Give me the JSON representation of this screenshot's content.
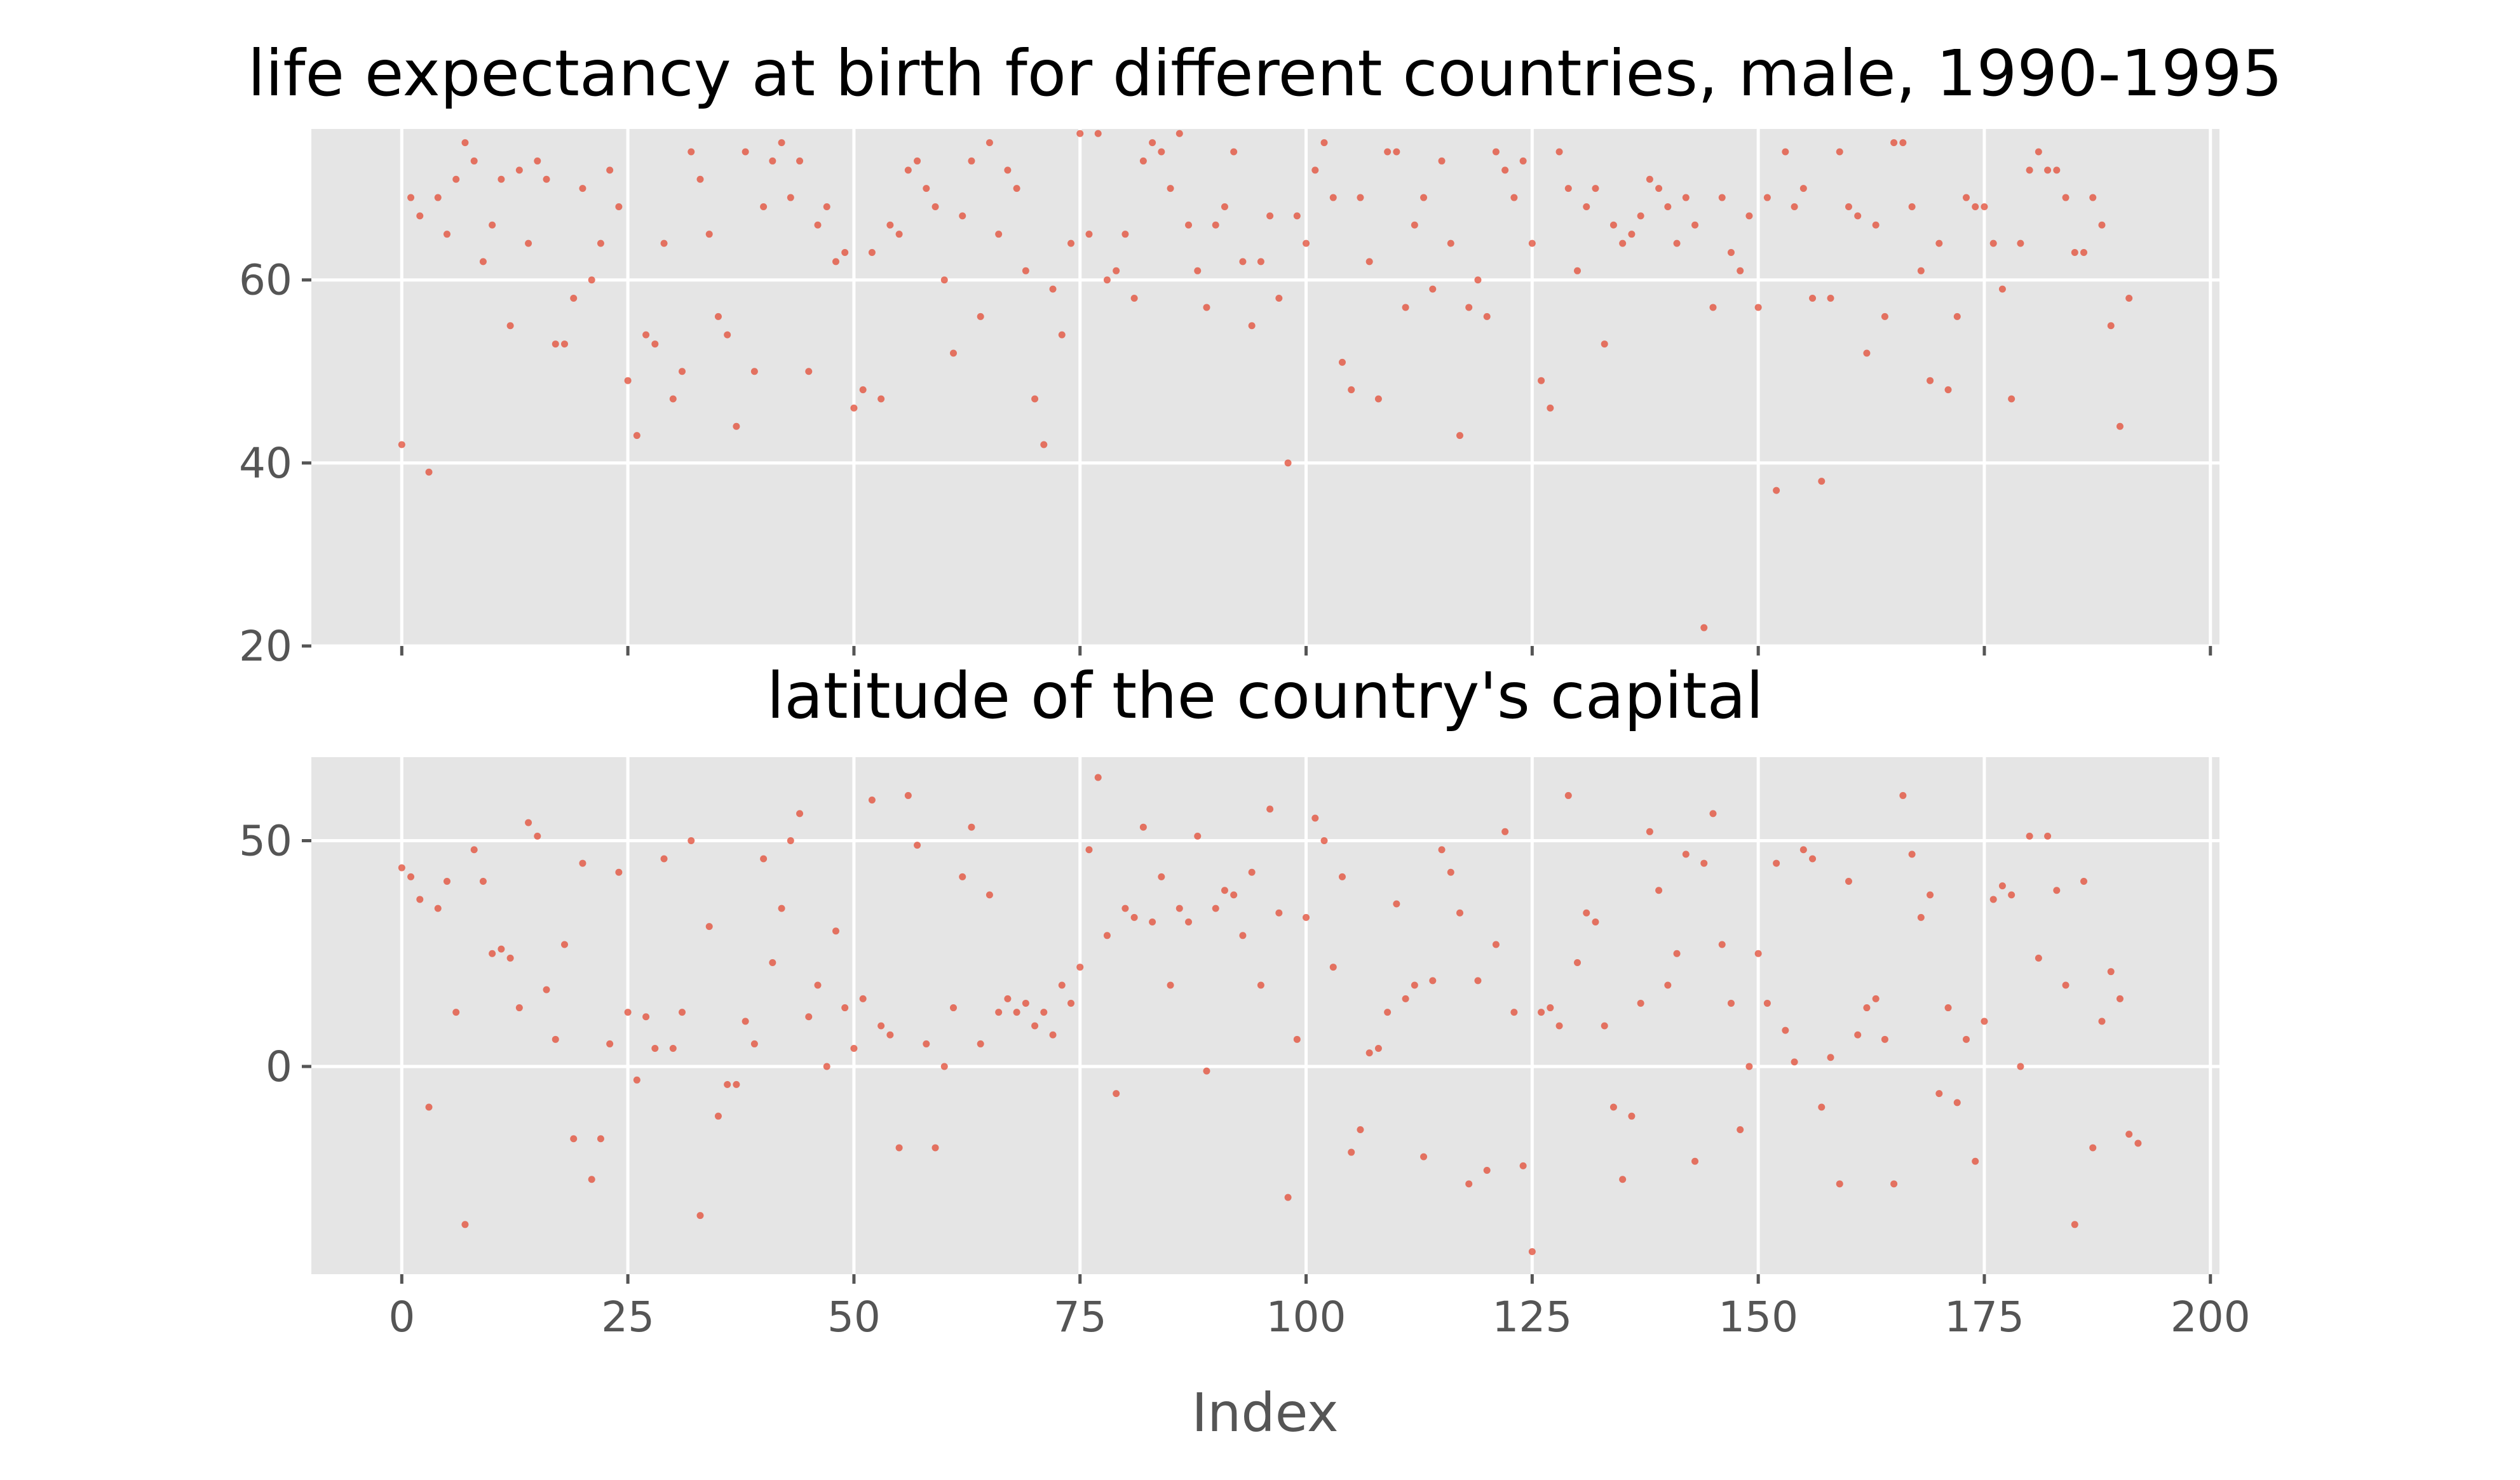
{
  "chart_data": [
    {
      "type": "scatter",
      "title": "life expectancy at birth for different countries, male, 1990-1995",
      "xlabel": "",
      "ylabel": "",
      "xlim": [
        -10,
        201
      ],
      "ylim": [
        20,
        76.5
      ],
      "xticks": [
        0,
        25,
        50,
        75,
        100,
        125,
        150,
        175,
        200
      ],
      "xtick_labels_visible": false,
      "yticks": [
        20,
        40,
        60
      ],
      "ytick_labels": [
        "20",
        "40",
        "60"
      ],
      "grid": true,
      "color": "#e24a33",
      "x_start": 0,
      "values": [
        42,
        69,
        67,
        39,
        69,
        65,
        71,
        75,
        73,
        62,
        66,
        71,
        55,
        72,
        64,
        73,
        71,
        53,
        53,
        58,
        70,
        60,
        64,
        72,
        68,
        49,
        43,
        54,
        53,
        64,
        47,
        50,
        74,
        71,
        65,
        56,
        54,
        44,
        74,
        50,
        68,
        73,
        75,
        69,
        73,
        50,
        66,
        68,
        62,
        63,
        46,
        48,
        63,
        47,
        66,
        65,
        72,
        73,
        70,
        68,
        60,
        52,
        67,
        73,
        56,
        75,
        65,
        72,
        70,
        61,
        47,
        42,
        59,
        54,
        64,
        76,
        65,
        76,
        60,
        61,
        65,
        58,
        73,
        75,
        74,
        70,
        76,
        66,
        61,
        57,
        66,
        68,
        74,
        62,
        55,
        62,
        67,
        58,
        40,
        67,
        64,
        72,
        75,
        69,
        51,
        48,
        69,
        62,
        47,
        74,
        74,
        57,
        66,
        69,
        59,
        73,
        64,
        43,
        57,
        60,
        56,
        74,
        72,
        69,
        73,
        64,
        49,
        46,
        74,
        70,
        61,
        68,
        70,
        53,
        66,
        64,
        65,
        67,
        71,
        70,
        68,
        64,
        69,
        66,
        22,
        57,
        69,
        63,
        61,
        67,
        57,
        69,
        37,
        74,
        68,
        70,
        58,
        38,
        58,
        74,
        68,
        67,
        52,
        66,
        56,
        75,
        75,
        68,
        61,
        49,
        64,
        48,
        56,
        69,
        68,
        68,
        64,
        59,
        47,
        64,
        72,
        74,
        72,
        72,
        69,
        63,
        63,
        69,
        66,
        55,
        44,
        58
      ]
    },
    {
      "type": "scatter",
      "title": "latitude of the country's capital",
      "xlabel": "Index",
      "ylabel": "",
      "xlim": [
        -10,
        201
      ],
      "ylim": [
        -46,
        68.5
      ],
      "xticks": [
        0,
        25,
        50,
        75,
        100,
        125,
        150,
        175,
        200
      ],
      "xtick_labels": [
        "0",
        "25",
        "50",
        "75",
        "100",
        "125",
        "150",
        "175",
        "200"
      ],
      "yticks": [
        0,
        50
      ],
      "ytick_labels": [
        "0",
        "50"
      ],
      "grid": true,
      "color": "#e24a33",
      "x_start": 0,
      "values": [
        44,
        42,
        37,
        -9,
        35,
        41,
        12,
        -35,
        48,
        41,
        25,
        26,
        24,
        13,
        54,
        51,
        17,
        6,
        27,
        -16,
        45,
        -25,
        -16,
        5,
        43,
        12,
        -3,
        11,
        4,
        46,
        4,
        12,
        50,
        -33,
        31,
        -11,
        -4,
        -4,
        10,
        5,
        46,
        23,
        35,
        50,
        56,
        11,
        18,
        0,
        30,
        13,
        4,
        15,
        59,
        9,
        7,
        -18,
        60,
        49,
        5,
        -18,
        0,
        13,
        42,
        53,
        5,
        38,
        12,
        15,
        12,
        14,
        9,
        12,
        7,
        18,
        14,
        22,
        48,
        64,
        29,
        -6,
        35,
        33,
        53,
        32,
        42,
        18,
        35,
        32,
        51,
        -1,
        35,
        39,
        38,
        29,
        43,
        18,
        57,
        34,
        -29,
        6,
        33,
        55,
        50,
        22,
        42,
        -19,
        -14,
        3,
        4,
        12,
        36,
        15,
        18,
        -20,
        19,
        48,
        43,
        34,
        -26,
        19,
        -23,
        27,
        52,
        12,
        -22,
        -41,
        12,
        13,
        9,
        60,
        23,
        34,
        32,
        9,
        -9,
        -25,
        -11,
        14,
        52,
        39,
        18,
        25,
        47,
        -21,
        45,
        56,
        27,
        14,
        -14,
        0,
        25,
        14,
        45,
        8,
        1,
        48,
        46,
        -9,
        2,
        -26,
        41,
        7,
        13,
        15,
        6,
        -26,
        60,
        47,
        33,
        38,
        -6,
        13,
        -8,
        6,
        -21,
        10,
        37,
        40,
        38,
        0,
        51,
        24,
        51,
        39,
        18,
        -35,
        41,
        -18,
        10,
        21,
        15,
        -15,
        -17
      ]
    }
  ]
}
